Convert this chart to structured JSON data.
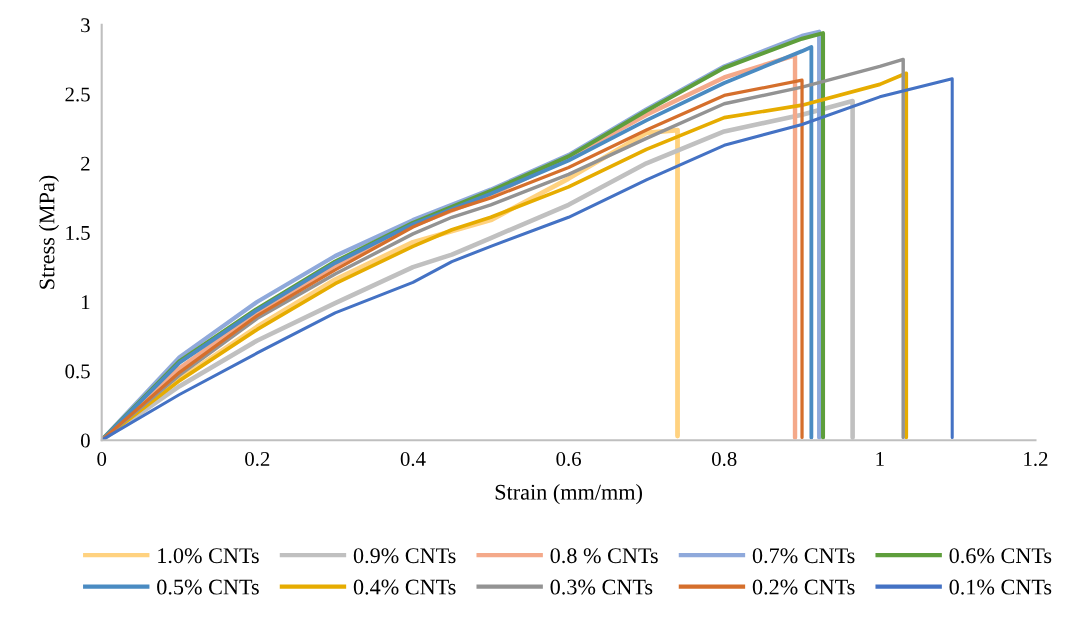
{
  "chart_data": {
    "type": "line",
    "xlabel": "Strain (mm/mm)",
    "ylabel": "Stress (MPa)",
    "xlim": [
      0,
      1.2
    ],
    "ylim": [
      0,
      3
    ],
    "xticks": [
      0,
      0.2,
      0.4,
      0.6,
      0.8,
      1,
      1.2
    ],
    "yticks": [
      0,
      0.5,
      1,
      1.5,
      2,
      2.5,
      3
    ],
    "grid": false,
    "legend": "bottom",
    "marker": "none",
    "line_style": "solid",
    "series": [
      {
        "name": "1.0% CNTs",
        "color": "#ffd280",
        "x": [
          0,
          0.1,
          0.2,
          0.3,
          0.4,
          0.5,
          0.6,
          0.7,
          0.74,
          0.74
        ],
        "values": [
          0,
          0.44,
          0.82,
          1.16,
          1.43,
          1.59,
          1.89,
          2.22,
          2.24,
          0.03
        ]
      },
      {
        "name": "0.9% CNTs",
        "color": "#c0c0c0",
        "x": [
          0,
          0.1,
          0.2,
          0.3,
          0.4,
          0.45,
          0.5,
          0.6,
          0.7,
          0.8,
          0.9,
          0.965,
          0.965
        ],
        "values": [
          0,
          0.39,
          0.72,
          0.99,
          1.25,
          1.34,
          1.46,
          1.7,
          2.0,
          2.23,
          2.35,
          2.45,
          0.02
        ]
      },
      {
        "name": "0.8 % CNTs",
        "color": "#f4a98a",
        "x": [
          0,
          0.1,
          0.2,
          0.3,
          0.4,
          0.5,
          0.6,
          0.7,
          0.8,
          0.891,
          0.891
        ],
        "values": [
          0,
          0.52,
          0.92,
          1.26,
          1.55,
          1.77,
          2.04,
          2.35,
          2.62,
          2.78,
          0.02
        ]
      },
      {
        "name": "0.7% CNTs",
        "color": "#8fa9db",
        "x": [
          0,
          0.1,
          0.2,
          0.3,
          0.4,
          0.45,
          0.5,
          0.6,
          0.7,
          0.8,
          0.9,
          0.922,
          0.922
        ],
        "values": [
          0,
          0.6,
          1.0,
          1.33,
          1.59,
          1.7,
          1.81,
          2.06,
          2.39,
          2.7,
          2.92,
          2.95,
          0.02
        ]
      },
      {
        "name": "0.6% CNTs",
        "color": "#5e9e3c",
        "x": [
          0,
          0.1,
          0.2,
          0.3,
          0.4,
          0.5,
          0.6,
          0.7,
          0.8,
          0.9,
          0.927,
          0.927
        ],
        "values": [
          0,
          0.57,
          0.95,
          1.29,
          1.57,
          1.8,
          2.05,
          2.38,
          2.69,
          2.9,
          2.94,
          0.02
        ]
      },
      {
        "name": "0.5% CNTs",
        "color": "#4a8bc2",
        "x": [
          0,
          0.1,
          0.2,
          0.3,
          0.4,
          0.5,
          0.6,
          0.7,
          0.8,
          0.9,
          0.912,
          0.912
        ],
        "values": [
          0,
          0.56,
          0.94,
          1.28,
          1.56,
          1.78,
          2.02,
          2.31,
          2.58,
          2.81,
          2.84,
          0.02
        ]
      },
      {
        "name": "0.4% CNTs",
        "color": "#e6ac00",
        "x": [
          0,
          0.1,
          0.2,
          0.3,
          0.4,
          0.45,
          0.5,
          0.6,
          0.7,
          0.8,
          0.9,
          1.0,
          1.034,
          1.034
        ],
        "values": [
          0,
          0.43,
          0.8,
          1.13,
          1.4,
          1.52,
          1.61,
          1.83,
          2.1,
          2.33,
          2.42,
          2.57,
          2.65,
          0.02
        ]
      },
      {
        "name": "0.3% CNTs",
        "color": "#939393",
        "x": [
          0,
          0.1,
          0.2,
          0.3,
          0.4,
          0.45,
          0.5,
          0.6,
          0.7,
          0.8,
          0.9,
          1.0,
          1.03,
          1.03
        ],
        "values": [
          0,
          0.47,
          0.88,
          1.2,
          1.49,
          1.61,
          1.7,
          1.92,
          2.18,
          2.43,
          2.55,
          2.7,
          2.75,
          0.02
        ]
      },
      {
        "name": "0.2% CNTs",
        "color": "#d56f2c",
        "x": [
          0,
          0.1,
          0.2,
          0.3,
          0.4,
          0.45,
          0.5,
          0.6,
          0.7,
          0.8,
          0.9,
          0.9
        ],
        "values": [
          0,
          0.49,
          0.9,
          1.23,
          1.54,
          1.66,
          1.75,
          1.97,
          2.24,
          2.49,
          2.6,
          0.02
        ]
      },
      {
        "name": "0.1% CNTs",
        "color": "#4472c4",
        "x": [
          0,
          0.1,
          0.2,
          0.3,
          0.4,
          0.45,
          0.5,
          0.6,
          0.7,
          0.8,
          0.9,
          1.0,
          1.093,
          1.093
        ],
        "values": [
          0,
          0.33,
          0.63,
          0.92,
          1.14,
          1.29,
          1.4,
          1.61,
          1.88,
          2.13,
          2.28,
          2.48,
          2.61,
          0.02
        ]
      }
    ]
  }
}
